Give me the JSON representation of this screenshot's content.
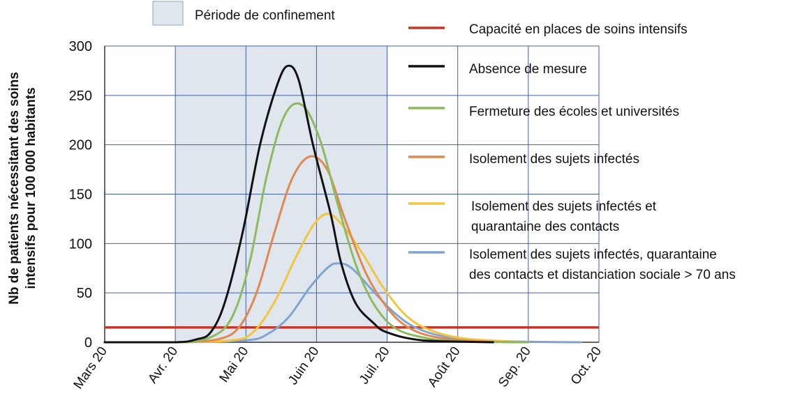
{
  "chart_data": {
    "type": "line",
    "ylabel_lines": [
      "Nb de patients nécessitant des soins",
      "intensifs pour 100 000 habitants"
    ],
    "x_ticks": [
      "Mars 20",
      "Avr. 20",
      "Mai 20",
      "Juin 20",
      "Juil. 20",
      "Août 20",
      "Sep. 20",
      "Oct. 20"
    ],
    "y_ticks": [
      "0",
      "50",
      "100",
      "150",
      "200",
      "250",
      "300"
    ],
    "ylim": [
      0,
      300
    ],
    "xlim": [
      0,
      7
    ],
    "grid": true,
    "shaded_period": {
      "label": "Période de confinement",
      "from": 1,
      "to": 4,
      "color": "#dfe6ee"
    },
    "capacity": {
      "name": "Capacité en places de soins intensifs",
      "value": 15,
      "color": "#c0392b"
    },
    "series": [
      {
        "name": "Absence de mesure",
        "color": "#111111",
        "points": [
          [
            0,
            0
          ],
          [
            1,
            0
          ],
          [
            1.3,
            3
          ],
          [
            1.5,
            10
          ],
          [
            1.7,
            40
          ],
          [
            1.95,
            110
          ],
          [
            2.2,
            200
          ],
          [
            2.45,
            262
          ],
          [
            2.6,
            280
          ],
          [
            2.75,
            265
          ],
          [
            2.95,
            200
          ],
          [
            3.2,
            130
          ],
          [
            3.35,
            80
          ],
          [
            3.55,
            40
          ],
          [
            3.8,
            20
          ],
          [
            4,
            10
          ],
          [
            4.5,
            2
          ],
          [
            5.5,
            0
          ]
        ]
      },
      {
        "name": "Fermeture des écoles et universités",
        "color": "#8dba5d",
        "points": [
          [
            0,
            0
          ],
          [
            1,
            0
          ],
          [
            1.5,
            5
          ],
          [
            1.8,
            25
          ],
          [
            2.05,
            80
          ],
          [
            2.3,
            170
          ],
          [
            2.55,
            230
          ],
          [
            2.8,
            240
          ],
          [
            3.05,
            205
          ],
          [
            3.3,
            140
          ],
          [
            3.55,
            80
          ],
          [
            3.8,
            40
          ],
          [
            4.1,
            15
          ],
          [
            4.5,
            5
          ],
          [
            5,
            1
          ],
          [
            6,
            0
          ]
        ]
      },
      {
        "name": "Isolement des sujets infectés",
        "color": "#e08850",
        "points": [
          [
            0,
            0
          ],
          [
            1,
            0
          ],
          [
            1.6,
            3
          ],
          [
            1.9,
            15
          ],
          [
            2.15,
            50
          ],
          [
            2.4,
            110
          ],
          [
            2.65,
            165
          ],
          [
            2.9,
            188
          ],
          [
            3.15,
            175
          ],
          [
            3.4,
            125
          ],
          [
            3.7,
            70
          ],
          [
            4,
            35
          ],
          [
            4.3,
            15
          ],
          [
            4.7,
            5
          ],
          [
            5.3,
            1
          ],
          [
            6,
            0
          ]
        ]
      },
      {
        "name": "Isolement des sujets infectés et quarantaine des contacts",
        "color": "#f2c53d",
        "points": [
          [
            0,
            0
          ],
          [
            1,
            0
          ],
          [
            1.8,
            2
          ],
          [
            2.1,
            10
          ],
          [
            2.4,
            40
          ],
          [
            2.7,
            85
          ],
          [
            2.95,
            118
          ],
          [
            3.15,
            130
          ],
          [
            3.35,
            120
          ],
          [
            3.65,
            90
          ],
          [
            3.95,
            55
          ],
          [
            4.3,
            25
          ],
          [
            4.7,
            10
          ],
          [
            5.2,
            3
          ],
          [
            6,
            0
          ]
        ]
      },
      {
        "name": "Isolement des sujets infectés, quarantaine des contacts et distanciation sociale > 70 ans",
        "color": "#7ea4d1",
        "points": [
          [
            0,
            0
          ],
          [
            1,
            0
          ],
          [
            2,
            2
          ],
          [
            2.3,
            8
          ],
          [
            2.6,
            25
          ],
          [
            2.9,
            55
          ],
          [
            3.15,
            75
          ],
          [
            3.3,
            80
          ],
          [
            3.5,
            75
          ],
          [
            3.8,
            52
          ],
          [
            4.1,
            30
          ],
          [
            4.4,
            15
          ],
          [
            4.8,
            6
          ],
          [
            5.4,
            2
          ],
          [
            6,
            0.5
          ],
          [
            6.75,
            0
          ]
        ]
      }
    ]
  }
}
